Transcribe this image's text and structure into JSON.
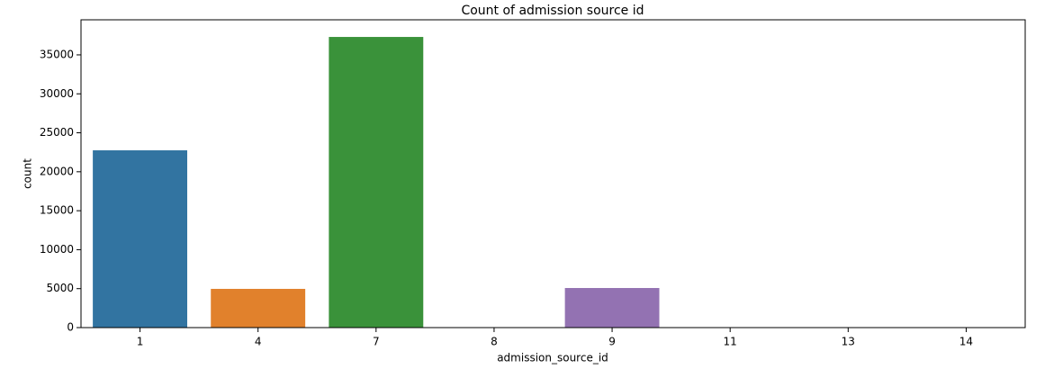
{
  "chart_data": {
    "type": "bar",
    "title": "Count of admission source id",
    "x_label": "admission_source_id",
    "y_label": "count",
    "categories": [
      "1",
      "4",
      "7",
      "8",
      "9",
      "11",
      "13",
      "14"
    ],
    "values": [
      22750,
      4970,
      37300,
      10,
      5080,
      2,
      1,
      2
    ],
    "colors": [
      "#3274a1",
      "#e1812c",
      "#3a923a",
      "#c03d3e",
      "#9372b2",
      "#845b53",
      "#d684bd",
      "#7f7f7f"
    ],
    "ylim": [
      0,
      39500
    ],
    "yticks": [
      0,
      5000,
      10000,
      15000,
      20000,
      25000,
      30000,
      35000
    ]
  }
}
